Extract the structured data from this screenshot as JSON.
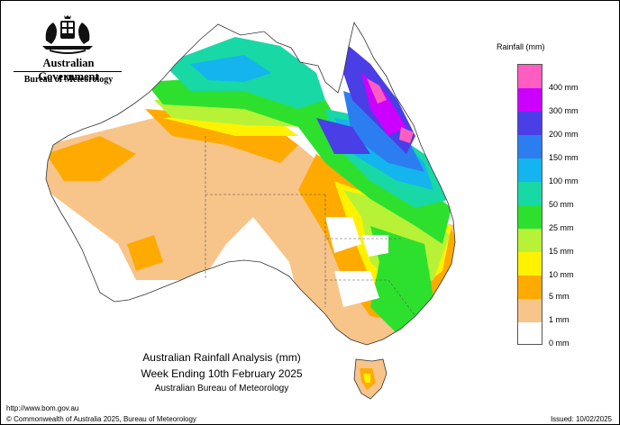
{
  "header": {
    "gov_title": "Australian Government",
    "bureau_title": "Bureau of Meteorology"
  },
  "legend": {
    "title": "Rainfall (mm)",
    "items": [
      {
        "label": "400 mm",
        "color": "#ff5ec0"
      },
      {
        "label": "300 mm",
        "color": "#cc00ff"
      },
      {
        "label": "200 mm",
        "color": "#4a3ee6"
      },
      {
        "label": "150 mm",
        "color": "#2c7df0"
      },
      {
        "label": "100 mm",
        "color": "#14b4ee"
      },
      {
        "label": "50 mm",
        "color": "#18d8a6"
      },
      {
        "label": "25 mm",
        "color": "#2ee02e"
      },
      {
        "label": "15 mm",
        "color": "#b8f236"
      },
      {
        "label": "10 mm",
        "color": "#fff200"
      },
      {
        "label": "5 mm",
        "color": "#ffaa00"
      },
      {
        "label": "1 mm",
        "color": "#f7c48a"
      },
      {
        "label": "0 mm",
        "color": "#ffffff"
      }
    ]
  },
  "caption": {
    "line1": "Australian Rainfall Analysis (mm)",
    "line2": "Week Ending 10th February 2025",
    "line3": "Australian Bureau of Meteorology"
  },
  "footer": {
    "url": "http://www.bom.gov.au",
    "copyright": "© Commonwealth of Australia 2025, Bureau of Meteorology",
    "issued": "Issued: 10/02/2025"
  }
}
